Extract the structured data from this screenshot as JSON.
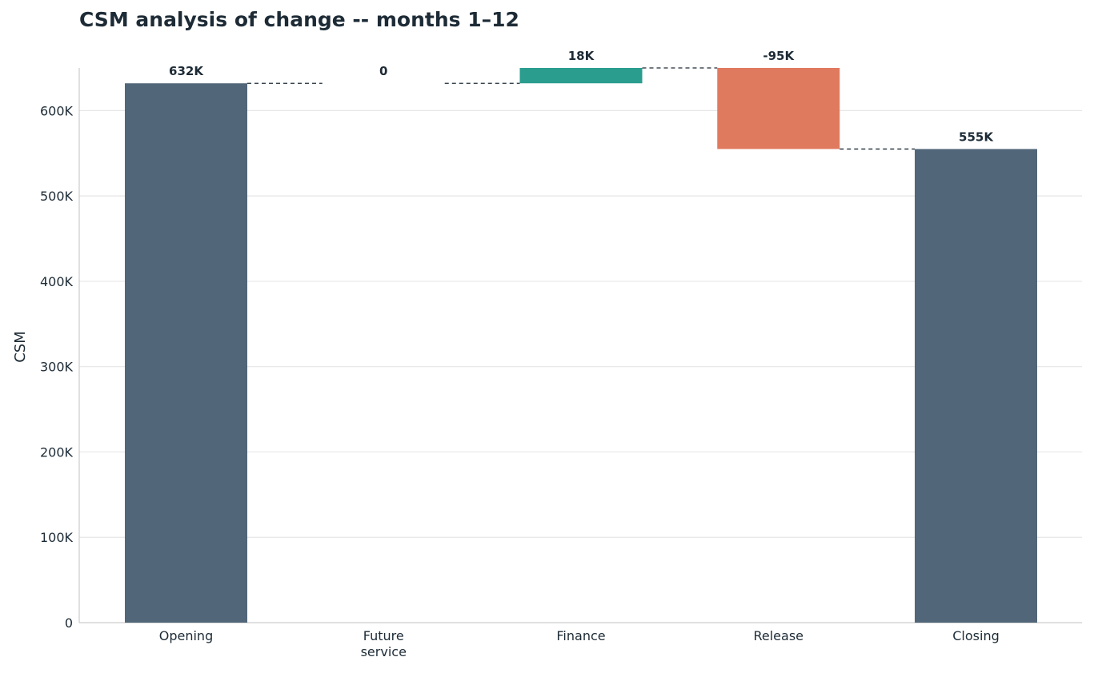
{
  "chart_data": {
    "type": "bar",
    "subtype": "waterfall",
    "title": "CSM analysis of change -- months 1–12",
    "xlabel": "",
    "ylabel": "CSM",
    "ylim": [
      0,
      650000
    ],
    "yticks": [
      0,
      100000,
      200000,
      300000,
      400000,
      500000,
      600000
    ],
    "ytick_labels": [
      "0",
      "100K",
      "200K",
      "300K",
      "400K",
      "500K",
      "600K"
    ],
    "grid": "horizontal",
    "categories": [
      [
        "Opening"
      ],
      [
        "Future",
        "service"
      ],
      [
        "Finance"
      ],
      [
        "Release"
      ],
      [
        "Closing"
      ]
    ],
    "kinds": [
      "total",
      "delta",
      "delta",
      "delta",
      "total"
    ],
    "values": [
      632000,
      0,
      18000,
      -95000,
      555000
    ],
    "data_labels": [
      "632K",
      "0",
      "18K",
      "-95K",
      "555K"
    ],
    "colors": {
      "total": "#526679",
      "increase": "#2a9d8f",
      "decrease": "#e07a5f",
      "grid": "#e6e6e6",
      "axis": "#cccccc",
      "connector": "#1d2b36"
    }
  }
}
